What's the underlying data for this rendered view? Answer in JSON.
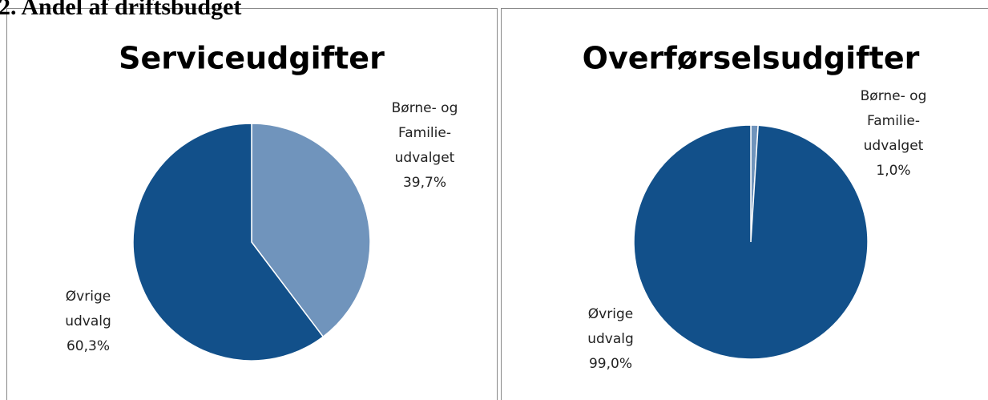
{
  "header": {
    "title": "2. Andel af driftsbudget"
  },
  "chart_data": [
    {
      "type": "pie",
      "title": "Serviceudgifter",
      "categories": [
        [
          "Børne- og",
          "Familie-",
          "udvalget"
        ],
        [
          "Øvrige",
          "udvalg"
        ]
      ],
      "values": [
        39.7,
        60.3
      ],
      "value_labels": [
        "39,7%",
        "60,3%"
      ],
      "colors": [
        "#7094bc",
        "#12508a"
      ]
    },
    {
      "type": "pie",
      "title": "Overførselsudgifter",
      "categories": [
        [
          "Børne- og",
          "Familie-",
          "udvalget"
        ],
        [
          "Øvrige",
          "udvalg"
        ]
      ],
      "values": [
        1.0,
        99.0
      ],
      "value_labels": [
        "1,0%",
        "99,0%"
      ],
      "colors": [
        "#7094bc",
        "#12508a"
      ]
    }
  ]
}
